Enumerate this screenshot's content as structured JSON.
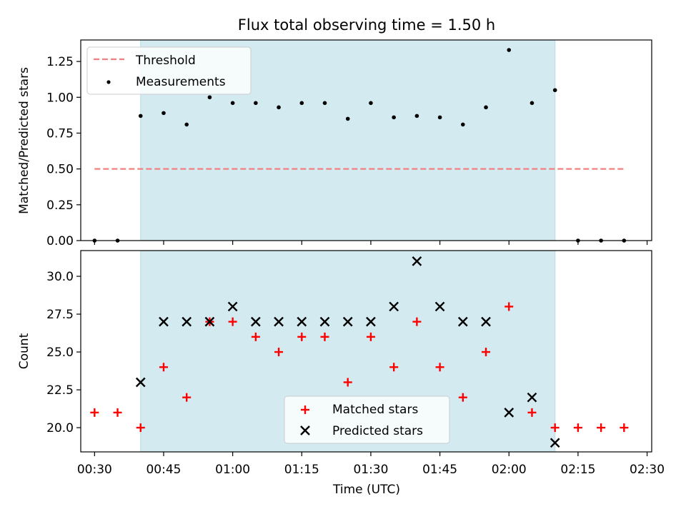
{
  "chart_data": [
    {
      "type": "scatter",
      "title": "Flux total observing time = 1.50 h",
      "xlabel": "",
      "ylabel": "Matched/Predicted stars",
      "ylim": [
        0,
        1.4
      ],
      "yticks": [
        "0.00",
        "0.25",
        "0.50",
        "0.75",
        "1.00",
        "1.25"
      ],
      "xlim": [
        "00:27",
        "02:31"
      ],
      "shaded_interval": {
        "start": "00:40",
        "end": "02:10",
        "color": "#d3eaf0"
      },
      "legend": {
        "placement": "top-left",
        "entries": [
          "Threshold",
          "Measurements"
        ]
      },
      "threshold": {
        "name": "Threshold",
        "y": 0.5,
        "x_start": "00:30",
        "x_end": "02:25",
        "color": "#f08080",
        "style": "dashed"
      },
      "series": [
        {
          "name": "Measurements",
          "marker": "dot",
          "color": "#000000",
          "x": [
            "00:30",
            "00:35",
            "00:40",
            "00:45",
            "00:50",
            "00:55",
            "01:00",
            "01:05",
            "01:10",
            "01:15",
            "01:20",
            "01:25",
            "01:30",
            "01:35",
            "01:40",
            "01:45",
            "01:50",
            "01:55",
            "02:00",
            "02:05",
            "02:10",
            "02:15",
            "02:20",
            "02:25"
          ],
          "y": [
            0.0,
            0.0,
            0.87,
            0.89,
            0.81,
            1.0,
            0.96,
            0.96,
            0.93,
            0.96,
            0.96,
            0.85,
            0.96,
            0.86,
            0.87,
            0.86,
            0.81,
            0.93,
            1.33,
            0.96,
            1.05,
            0.0,
            0.0,
            0.0
          ]
        }
      ]
    },
    {
      "type": "scatter",
      "title": "",
      "xlabel": "Time (UTC)",
      "ylabel": "Count",
      "ylim": [
        18.4,
        31.7
      ],
      "yticks": [
        "20.0",
        "22.5",
        "25.0",
        "27.5",
        "30.0"
      ],
      "xlim": [
        "00:27",
        "02:31"
      ],
      "xticks": [
        "00:30",
        "00:45",
        "01:00",
        "01:15",
        "01:30",
        "01:45",
        "02:00",
        "02:15",
        "02:30"
      ],
      "shaded_interval": {
        "start": "00:40",
        "end": "02:10",
        "color": "#d3eaf0"
      },
      "legend": {
        "placement": "lower-center",
        "entries": [
          "Matched stars",
          "Predicted stars"
        ]
      },
      "series": [
        {
          "name": "Matched stars",
          "marker": "plus",
          "color": "#ff0000",
          "x": [
            "00:30",
            "00:35",
            "00:40",
            "00:45",
            "00:50",
            "00:55",
            "01:00",
            "01:05",
            "01:10",
            "01:15",
            "01:20",
            "01:25",
            "01:30",
            "01:35",
            "01:40",
            "01:45",
            "01:50",
            "01:55",
            "02:00",
            "02:05",
            "02:10",
            "02:15",
            "02:20",
            "02:25"
          ],
          "y": [
            21,
            21,
            20,
            24,
            22,
            27,
            27,
            26,
            25,
            26,
            26,
            23,
            26,
            24,
            27,
            24,
            22,
            25,
            28,
            21,
            20,
            20,
            20,
            20
          ]
        },
        {
          "name": "Predicted stars",
          "marker": "x",
          "color": "#000000",
          "x": [
            "00:40",
            "00:45",
            "00:50",
            "00:55",
            "01:00",
            "01:05",
            "01:10",
            "01:15",
            "01:20",
            "01:25",
            "01:30",
            "01:35",
            "01:40",
            "01:45",
            "01:50",
            "01:55",
            "02:00",
            "02:05",
            "02:10"
          ],
          "y": [
            23,
            27,
            27,
            27,
            28,
            27,
            27,
            27,
            27,
            27,
            27,
            28,
            31,
            28,
            27,
            27,
            21,
            22,
            19
          ]
        }
      ]
    }
  ]
}
